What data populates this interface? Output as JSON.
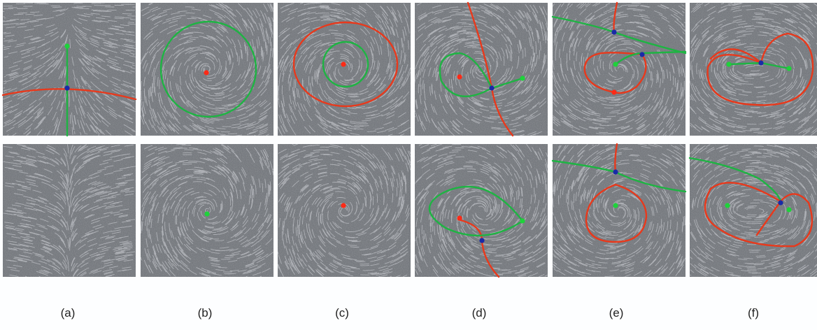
{
  "figure": {
    "panel_labels": [
      "(a)",
      "(b)",
      "(c)",
      "(d)",
      "(e)",
      "(f)"
    ],
    "colors": {
      "background": "#6e7278",
      "streak": "#d8dbe0",
      "repelling_curve": "#e8391c",
      "attracting_curve": "#1eb443",
      "source": "#ff2a16",
      "sink": "#1ed23a",
      "saddle": "#1a2aa8"
    },
    "columns": [
      {
        "label": "(a)",
        "top": {
          "field": "vertical-divergence",
          "structure": [
            "sink",
            "saddle",
            "red-separatrix",
            "green-separatrix"
          ]
        },
        "bottom": {
          "field": "vertical-convergence",
          "structure": []
        }
      },
      {
        "label": "(b)",
        "top": {
          "field": "spiral",
          "structure": [
            "source",
            "green-limit-cycle"
          ]
        },
        "bottom": {
          "field": "spiral",
          "structure": [
            "sink"
          ]
        }
      },
      {
        "label": "(c)",
        "top": {
          "field": "spiral",
          "structure": [
            "source",
            "green-limit-cycle",
            "red-limit-cycle"
          ]
        },
        "bottom": {
          "field": "spiral",
          "structure": [
            "source"
          ]
        }
      },
      {
        "label": "(d)",
        "top": {
          "field": "spiral",
          "structure": [
            "source",
            "saddle",
            "sink",
            "green-loop",
            "red-separatrices"
          ]
        },
        "bottom": {
          "field": "spiral",
          "structure": [
            "source",
            "saddle",
            "sink",
            "green-loop",
            "red-separatrices"
          ]
        }
      },
      {
        "label": "(e)",
        "top": {
          "field": "dipole",
          "structure": [
            "sink",
            "source",
            "saddles",
            "green-separatrices",
            "red-loop"
          ]
        },
        "bottom": {
          "field": "dipole",
          "structure": [
            "sink",
            "saddle",
            "green-separatrices",
            "red-loop"
          ]
        }
      },
      {
        "label": "(f)",
        "top": {
          "field": "double-spiral",
          "structure": [
            "sinks",
            "saddle",
            "red-separatrix-loops",
            "green-connections"
          ]
        },
        "bottom": {
          "field": "double-spiral",
          "structure": [
            "sinks",
            "saddle",
            "red-separatrix-loops",
            "green-connections"
          ]
        }
      }
    ]
  }
}
